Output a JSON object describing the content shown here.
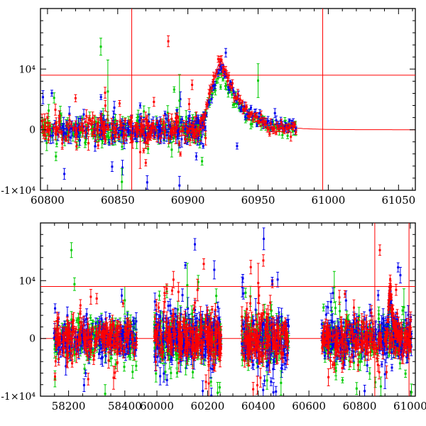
{
  "figure": {
    "background": "#ffffff",
    "axis_color": "#000000",
    "cursor_color": "#ff0000"
  },
  "chart_data": [
    {
      "id": "top",
      "type": "scatter",
      "title": "",
      "xlabel": "",
      "ylabel": "",
      "x_axis": {
        "min": 60795,
        "max": 61062,
        "major_ticks": [
          60800,
          60850,
          60900,
          60950,
          61000,
          61050
        ],
        "tick_labels": [
          "60800",
          "60850",
          "60900",
          "60950",
          "61000",
          "61050"
        ],
        "minor_step": 10
      },
      "y_axis": {
        "min": -10000,
        "max": 20000,
        "major_ticks": [
          {
            "v": -10000,
            "label": "-1×10⁴"
          },
          {
            "v": 0,
            "label": "0"
          },
          {
            "v": 10000,
            "label": "10⁴"
          }
        ],
        "minor_step": 2000
      },
      "grid_lines": {
        "color": "#ff0000",
        "h": [
          9000
        ],
        "v": [
          60860,
          60996
        ]
      },
      "series": [
        {
          "name": "green",
          "color": "#00cc00"
        },
        {
          "name": "blue",
          "color": "#0000ee"
        },
        {
          "name": "red",
          "color": "#ff0000"
        }
      ],
      "baseline_clusters": [
        {
          "xmin": 60796,
          "xmax": 60913,
          "n": 210,
          "sigma": 1000,
          "err": 750,
          "tail_frac": 0.1,
          "tail_mult": 2.8
        }
      ],
      "flare": {
        "t_start": 60897,
        "t_end": 60978,
        "step": 0.9,
        "t_peak": 60924.5,
        "rise_sigma": 7.5,
        "decay_tau": 14,
        "scatter": 650,
        "err": 520,
        "amplitudes": {
          "red": 11400,
          "green": 8800,
          "blue": 10300
        }
      },
      "model_line": {
        "series": "red",
        "color": "#ff0000",
        "amplitude": 11400,
        "baseline": 0
      },
      "outliers": [
        {
          "s": "red",
          "x": 60820,
          "y": 5200,
          "e": 600
        },
        {
          "s": "red",
          "x": 60841,
          "y": 6100,
          "e": 900
        },
        {
          "s": "red",
          "x": 60886,
          "y": 14600,
          "e": 900
        },
        {
          "s": "red",
          "x": 60866,
          "y": -3700,
          "e": 2700
        },
        {
          "s": "red",
          "x": 60903,
          "y": 7400,
          "e": 800
        },
        {
          "s": "green",
          "x": 60806,
          "y": -4400,
          "e": 700
        },
        {
          "s": "green",
          "x": 60838,
          "y": 13700,
          "e": 1400
        },
        {
          "s": "green",
          "x": 60843,
          "y": 6300,
          "e": 5200
        },
        {
          "s": "green",
          "x": 60853,
          "y": -8600,
          "e": 2200
        },
        {
          "s": "green",
          "x": 60894,
          "y": 4800,
          "e": 4300
        },
        {
          "s": "green",
          "x": 60950,
          "y": 8100,
          "e": 2800
        },
        {
          "s": "blue",
          "x": 60812,
          "y": -7300,
          "e": 900
        },
        {
          "s": "blue",
          "x": 60846,
          "y": -6100,
          "e": 800
        },
        {
          "s": "blue",
          "x": 60871,
          "y": -8700,
          "e": 1100
        },
        {
          "s": "blue",
          "x": 60906,
          "y": -4400,
          "e": 600
        },
        {
          "s": "blue",
          "x": 60927,
          "y": 12700,
          "e": 700
        },
        {
          "s": "blue",
          "x": 60935,
          "y": -2700,
          "e": 500
        },
        {
          "s": "blue",
          "x": 60894,
          "y": -9200,
          "e": 1500
        }
      ]
    },
    {
      "id": "bottom",
      "type": "scatter",
      "title": "",
      "xlabel": "",
      "ylabel": "",
      "x_axis": {
        "min": 58100,
        "max": 61020,
        "segments": [
          {
            "x0": 58100,
            "x1": 58460,
            "f0": 0.0,
            "f1": 0.27
          },
          {
            "x0": 59940,
            "x1": 61020,
            "f0": 0.27,
            "f1": 1.0
          }
        ],
        "major_ticks": [
          58200,
          58400,
          60000,
          60200,
          60400,
          60600,
          60800,
          61000
        ],
        "tick_labels": [
          "58200",
          "58400",
          "60000",
          "60200",
          "60400",
          "60600",
          "60800",
          "61000"
        ],
        "minor_step": 50
      },
      "y_axis": {
        "min": -10000,
        "max": 20000,
        "major_ticks": [
          {
            "v": -10000,
            "label": "-1×10⁴"
          },
          {
            "v": 0,
            "label": "0"
          },
          {
            "v": 10000,
            "label": "10⁴"
          }
        ],
        "minor_step": 2000
      },
      "grid_lines": {
        "color": "#ff0000",
        "h": [
          9000
        ],
        "v": [
          60860,
          60995
        ]
      },
      "series": [
        {
          "name": "green",
          "color": "#00cc00"
        },
        {
          "name": "blue",
          "color": "#0000ee"
        },
        {
          "name": "red",
          "color": "#ff0000"
        }
      ],
      "baseline_clusters": [
        {
          "xmin": 58148,
          "xmax": 58442,
          "n": 200,
          "sigma": 1500,
          "err": 900,
          "tail_frac": 0.12,
          "tail_mult": 3.0
        },
        {
          "xmin": 59990,
          "xmax": 60255,
          "n": 230,
          "sigma": 1900,
          "err": 1100,
          "tail_frac": 0.14,
          "tail_mult": 3.0
        },
        {
          "xmin": 60335,
          "xmax": 60520,
          "n": 140,
          "sigma": 1900,
          "err": 1100,
          "tail_frac": 0.14,
          "tail_mult": 3.0
        },
        {
          "xmin": 60650,
          "xmax": 61005,
          "n": 220,
          "sigma": 1600,
          "err": 950,
          "tail_frac": 0.12,
          "tail_mult": 3.0
        }
      ],
      "flare": {
        "t_start": 60900,
        "t_end": 60968,
        "step": 0.8,
        "t_peak": 60921,
        "rise_sigma": 6,
        "decay_tau": 10,
        "scatter": 600,
        "err": 500,
        "amplitudes": {
          "red": 9300,
          "green": 7000,
          "blue": 8200
        }
      },
      "model_line": {
        "series": "red",
        "color": "#ff0000",
        "amplitude": 9300,
        "baseline": 0
      },
      "outliers": [
        {
          "s": "green",
          "x": 58210,
          "y": 15300,
          "e": 1300
        },
        {
          "s": "green",
          "x": 58400,
          "y": 6600,
          "e": 2400
        },
        {
          "s": "green",
          "x": 58330,
          "y": -9600,
          "e": 1600
        },
        {
          "s": "blue",
          "x": 58255,
          "y": -8100,
          "e": 1100
        },
        {
          "s": "blue",
          "x": 58152,
          "y": 5200,
          "e": 800
        },
        {
          "s": "red",
          "x": 58300,
          "y": 6900,
          "e": 900
        },
        {
          "s": "red",
          "x": 58360,
          "y": -6800,
          "e": 2000
        },
        {
          "s": "blue",
          "x": 60150,
          "y": 16300,
          "e": 1000
        },
        {
          "s": "red",
          "x": 60185,
          "y": 12900,
          "e": 900
        },
        {
          "s": "red",
          "x": 60060,
          "y": 8300,
          "e": 700
        },
        {
          "s": "blue",
          "x": 60215,
          "y": -9900,
          "e": 1300
        },
        {
          "s": "green",
          "x": 60120,
          "y": 9200,
          "e": 3800
        },
        {
          "s": "red",
          "x": 60205,
          "y": -7800,
          "e": 3200
        },
        {
          "s": "green",
          "x": 60240,
          "y": -9400,
          "e": 1800
        },
        {
          "s": "blue",
          "x": 60040,
          "y": -7200,
          "e": 900
        },
        {
          "s": "green",
          "x": 60010,
          "y": 7400,
          "e": 800
        },
        {
          "s": "red",
          "x": 60420,
          "y": 13500,
          "e": 1000
        },
        {
          "s": "red",
          "x": 60400,
          "y": 9600,
          "e": 3400
        },
        {
          "s": "blue",
          "x": 60470,
          "y": -9200,
          "e": 900
        },
        {
          "s": "green",
          "x": 60350,
          "y": 7900,
          "e": 800
        },
        {
          "s": "blue",
          "x": 60455,
          "y": 9900,
          "e": 700
        },
        {
          "s": "green",
          "x": 60490,
          "y": -7700,
          "e": 2100
        },
        {
          "s": "red",
          "x": 60380,
          "y": -8800,
          "e": 1200
        },
        {
          "s": "red",
          "x": 60880,
          "y": 15300,
          "e": 900
        },
        {
          "s": "blue",
          "x": 60952,
          "y": 12300,
          "e": 800
        },
        {
          "s": "green",
          "x": 60700,
          "y": 8900,
          "e": 2700
        },
        {
          "s": "blue",
          "x": 60820,
          "y": -9100,
          "e": 1000
        },
        {
          "s": "green",
          "x": 60862,
          "y": -7600,
          "e": 900
        },
        {
          "s": "red",
          "x": 60742,
          "y": 7700,
          "e": 600
        },
        {
          "s": "blue",
          "x": 60900,
          "y": -6200,
          "e": 2500
        },
        {
          "s": "green",
          "x": 60975,
          "y": 5400,
          "e": 3200
        }
      ]
    }
  ]
}
